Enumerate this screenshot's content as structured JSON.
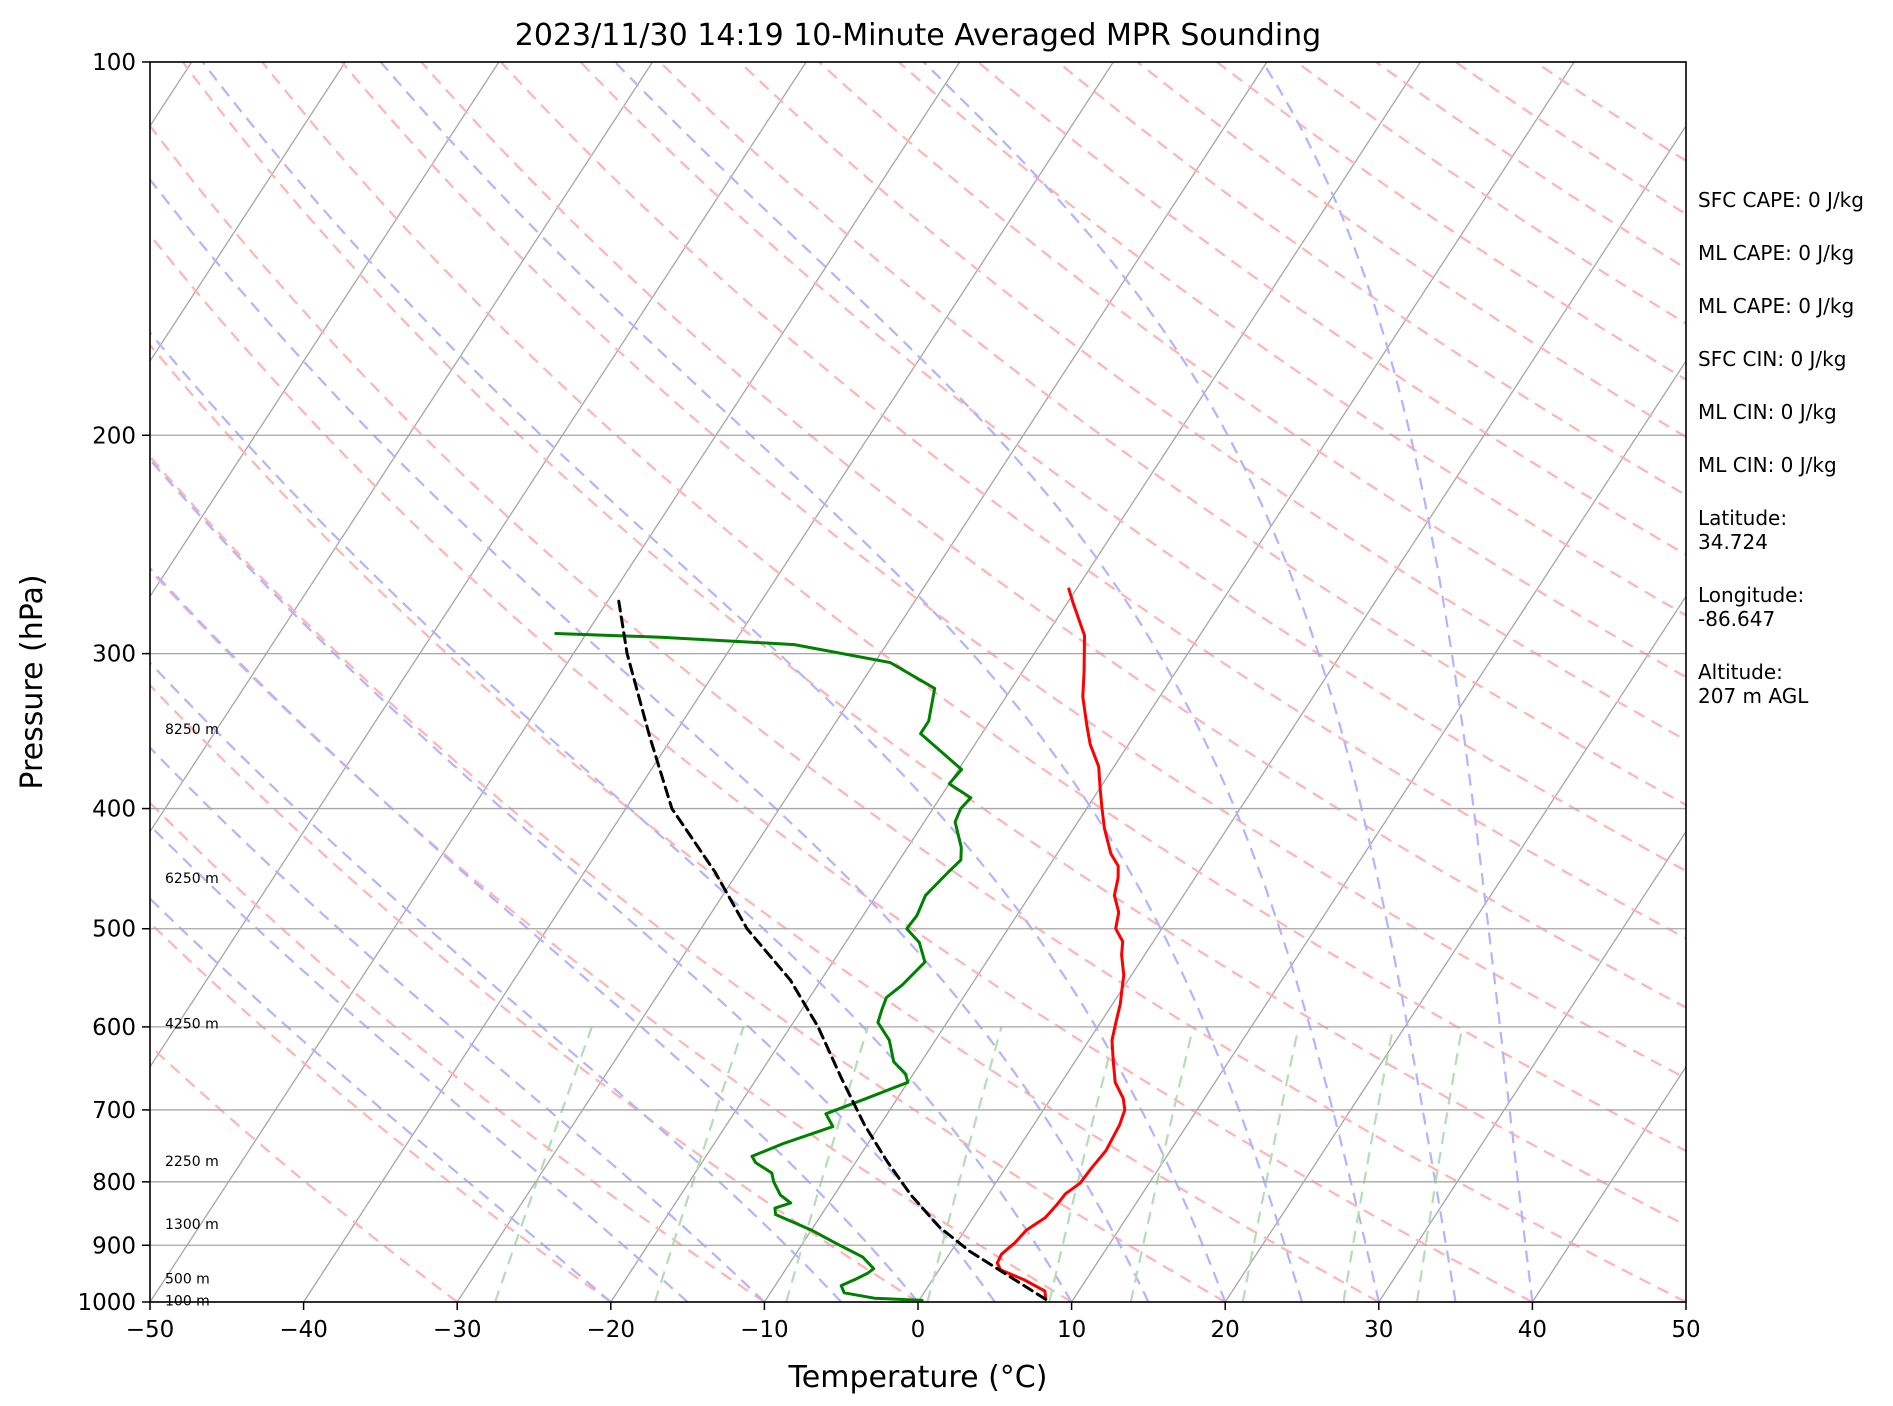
{
  "chart_data": {
    "type": "line",
    "subtype": "skew-T log-P sounding",
    "title": "2023/11/30 14:19 10-Minute Averaged MPR Sounding",
    "xlabel": "Temperature (°C)",
    "ylabel": "Pressure (hPa)",
    "xlim": [
      -50,
      50
    ],
    "ylim": [
      1000,
      100
    ],
    "y_scale": "log",
    "grid": true,
    "x_ticks": [
      -50,
      -40,
      -30,
      -20,
      -10,
      0,
      10,
      20,
      30,
      40,
      50
    ],
    "x_tick_labels": [
      "−50",
      "−40",
      "−30",
      "−20",
      "−10",
      "0",
      "10",
      "20",
      "30",
      "40",
      "50"
    ],
    "y_ticks": [
      100,
      200,
      300,
      400,
      500,
      600,
      700,
      800,
      900,
      1000
    ],
    "y_tick_labels": [
      "100",
      "200",
      "300",
      "400",
      "500",
      "600",
      "700",
      "800",
      "900",
      "1000"
    ],
    "height_labels": [
      {
        "p": 345,
        "label": "8250 m"
      },
      {
        "p": 455,
        "label": "6250 m"
      },
      {
        "p": 596,
        "label": "4250 m"
      },
      {
        "p": 770,
        "label": "2250 m"
      },
      {
        "p": 865,
        "label": "1300 m"
      },
      {
        "p": 957,
        "label": "500 m"
      },
      {
        "p": 997,
        "label": "100 m"
      }
    ],
    "series": [
      {
        "role": "temperature",
        "color": "#ff0000",
        "points": [
          [
            8.2,
            995
          ],
          [
            7.8,
            980
          ],
          [
            6.0,
            960
          ],
          [
            4.0,
            942
          ],
          [
            3.5,
            930
          ],
          [
            3.4,
            915
          ],
          [
            3.8,
            895
          ],
          [
            4.0,
            875
          ],
          [
            4.7,
            855
          ],
          [
            4.9,
            835
          ],
          [
            5.0,
            818
          ],
          [
            5.5,
            802
          ],
          [
            5.6,
            780
          ],
          [
            5.8,
            755
          ],
          [
            5.6,
            720
          ],
          [
            5.3,
            700
          ],
          [
            4.7,
            685
          ],
          [
            3.5,
            665
          ],
          [
            2.5,
            640
          ],
          [
            1.5,
            615
          ],
          [
            1.0,
            595
          ],
          [
            0.5,
            575
          ],
          [
            0.0,
            560
          ],
          [
            -0.5,
            545
          ],
          [
            -1.5,
            525
          ],
          [
            -2.0,
            512
          ],
          [
            -3.0,
            500
          ],
          [
            -3.5,
            485
          ],
          [
            -4.5,
            470
          ],
          [
            -5.0,
            455
          ],
          [
            -5.5,
            445
          ],
          [
            -6.5,
            435
          ],
          [
            -8.0,
            415
          ],
          [
            -9.0,
            400
          ],
          [
            -10.0,
            385
          ],
          [
            -11.0,
            370
          ],
          [
            -12.5,
            355
          ],
          [
            -13.5,
            343
          ],
          [
            -15.0,
            325
          ],
          [
            -16.0,
            310
          ],
          [
            -17.5,
            290
          ],
          [
            -19.5,
            274
          ],
          [
            -20.5,
            266
          ]
        ]
      },
      {
        "role": "dewpoint",
        "color": "#008000",
        "points": [
          [
            0.2,
            997
          ],
          [
            -3.0,
            993
          ],
          [
            -5.2,
            983
          ],
          [
            -5.7,
            970
          ],
          [
            -5.0,
            958
          ],
          [
            -4.5,
            948
          ],
          [
            -4.3,
            940
          ],
          [
            -5.5,
            920
          ],
          [
            -8.0,
            895
          ],
          [
            -10.0,
            875
          ],
          [
            -13.0,
            850
          ],
          [
            -13.3,
            840
          ],
          [
            -12.5,
            832
          ],
          [
            -13.5,
            820
          ],
          [
            -14.5,
            800
          ],
          [
            -15.0,
            787
          ],
          [
            -16.5,
            772
          ],
          [
            -17.0,
            763
          ],
          [
            -15.5,
            745
          ],
          [
            -13.0,
            722
          ],
          [
            -14.0,
            705
          ],
          [
            -12.0,
            685
          ],
          [
            -10.0,
            665
          ],
          [
            -10.5,
            655
          ],
          [
            -11.8,
            640
          ],
          [
            -13.0,
            615
          ],
          [
            -14.5,
            595
          ],
          [
            -14.8,
            580
          ],
          [
            -15.0,
            568
          ],
          [
            -14.5,
            555
          ],
          [
            -14.0,
            532
          ],
          [
            -15.2,
            513
          ],
          [
            -16.6,
            500
          ],
          [
            -16.5,
            488
          ],
          [
            -16.8,
            470
          ],
          [
            -16.3,
            450
          ],
          [
            -16.0,
            440
          ],
          [
            -16.5,
            430
          ],
          [
            -18.0,
            410
          ],
          [
            -18.2,
            400
          ],
          [
            -18.0,
            392
          ],
          [
            -20.0,
            382
          ],
          [
            -19.8,
            372
          ],
          [
            -24.0,
            348
          ],
          [
            -24.0,
            340
          ],
          [
            -25.0,
            320
          ],
          [
            -29.0,
            305
          ],
          [
            -36.0,
            295
          ],
          [
            -45.0,
            291
          ],
          [
            -52.0,
            289
          ]
        ]
      },
      {
        "role": "parcel",
        "color": "#000000",
        "dashed": true,
        "points": [
          [
            8.2,
            995
          ],
          [
            1.2,
            910
          ],
          [
            -1.8,
            870
          ],
          [
            -5.0,
            820
          ],
          [
            -8.0,
            770
          ],
          [
            -11.0,
            720
          ],
          [
            -14.5,
            660
          ],
          [
            -18.2,
            600
          ],
          [
            -22.0,
            550
          ],
          [
            -27.0,
            500
          ],
          [
            -31.5,
            450
          ],
          [
            -37.0,
            400
          ],
          [
            -41.5,
            350
          ],
          [
            -46.5,
            300
          ],
          [
            -49.5,
            270
          ]
        ]
      }
    ]
  },
  "info_panel": [
    "SFC CAPE: 0 J/kg",
    "ML CAPE: 0 J/kg",
    "ML CAPE: 0 J/kg",
    "SFC CIN: 0 J/kg",
    "ML CIN: 0 J/kg",
    "ML CIN: 0 J/kg",
    "Latitude:\n34.724",
    "Longitude:\n-86.647",
    "Altitude:\n207 m AGL"
  ],
  "background_colors": {
    "isotherm": "#a6a6a6",
    "dry_adiabat": "#ffb3b3",
    "moist_adiabat": "#b3b3ff",
    "mixing_ratio": "#b3deb3"
  }
}
